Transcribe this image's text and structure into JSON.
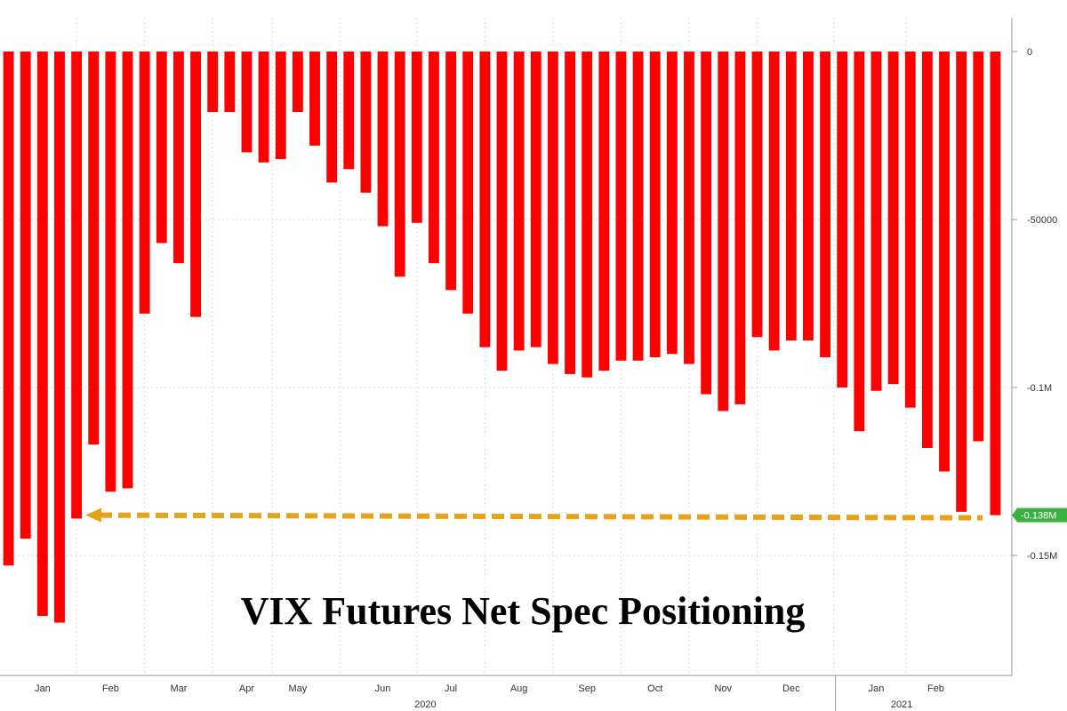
{
  "chart_data": {
    "type": "bar",
    "title": "VIX Futures Net Spec Positioning",
    "xlabel": "",
    "ylabel": "",
    "ylim": [
      -185000,
      15000
    ],
    "y_ticks": [
      {
        "value": 0,
        "label": "0"
      },
      {
        "value": -50000,
        "label": "-50000"
      },
      {
        "value": -100000,
        "label": "-0.1M"
      },
      {
        "value": -150000,
        "label": "-0.15M"
      }
    ],
    "x_month_labels": [
      {
        "label": "Jan",
        "index": 2
      },
      {
        "label": "Feb",
        "index": 6
      },
      {
        "label": "Mar",
        "index": 10
      },
      {
        "label": "Apr",
        "index": 14
      },
      {
        "label": "May",
        "index": 17
      },
      {
        "label": "Jun",
        "index": 22
      },
      {
        "label": "Jul",
        "index": 26
      },
      {
        "label": "Aug",
        "index": 30
      },
      {
        "label": "Sep",
        "index": 34
      },
      {
        "label": "Oct",
        "index": 38
      },
      {
        "label": "Nov",
        "index": 42
      },
      {
        "label": "Dec",
        "index": 46
      },
      {
        "label": "Jan",
        "index": 51
      },
      {
        "label": "Feb",
        "index": 54.5
      }
    ],
    "x_year_labels": [
      {
        "label": "2020",
        "index": 24.5
      },
      {
        "label": "2021",
        "index": 52.5
      }
    ],
    "bar_color": "#ff0000",
    "series": [
      {
        "values": [
          -153000,
          -145000,
          -168000,
          -170000,
          -139000,
          -117000,
          -131000,
          -130000,
          -78000,
          -57000,
          -63000,
          -79000,
          -18000,
          -18000,
          -30000,
          -33000,
          -32000,
          -18000,
          -28000,
          -39000,
          -35000,
          -42000,
          -52000,
          -67000,
          -51000,
          -63000,
          -71000,
          -78000,
          -88000,
          -95000,
          -89000,
          -88000,
          -93000,
          -96000,
          -97000,
          -95000,
          -92000,
          -92000,
          -91000,
          -90000,
          -93000,
          -102000,
          -107000,
          -105000,
          -85000,
          -89000,
          -86000,
          -86000,
          -91000,
          -100000,
          -113000,
          -101000,
          -99000,
          -106000,
          -118000,
          -125000,
          -137000,
          -116000,
          -138000
        ]
      }
    ],
    "reference_line": {
      "value": -138000,
      "label": "-0.138M",
      "color": "#e6a11e",
      "label_bg": "#3cb043"
    }
  }
}
